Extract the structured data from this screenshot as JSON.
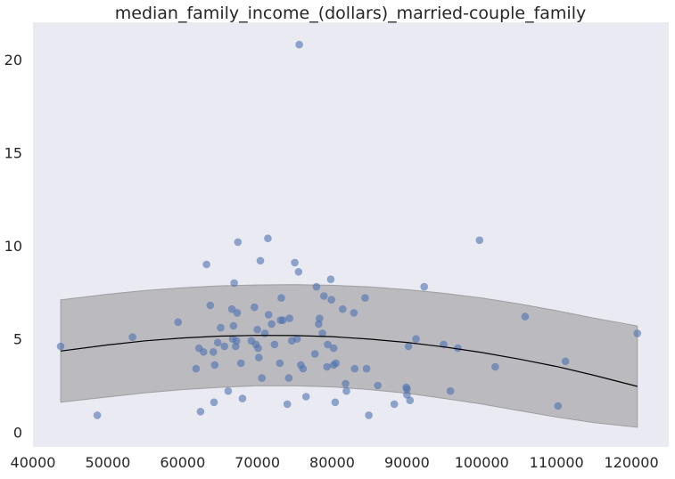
{
  "chart_data": {
    "type": "scatter",
    "title": "median_family_income_(dollars)_married-couple_family",
    "xlabel": "",
    "ylabel": "",
    "xlim": [
      40000,
      125000
    ],
    "ylim": [
      -0.8,
      22
    ],
    "x_ticks": [
      40000,
      50000,
      60000,
      70000,
      80000,
      90000,
      100000,
      110000,
      120000
    ],
    "y_ticks": [
      0,
      5,
      10,
      15,
      20
    ],
    "grid": false,
    "background": "#eaeaf2",
    "point_color": "#4c72b0",
    "fit_color": "#000000",
    "band_color": "#808080",
    "points": [
      [
        43700,
        4.6
      ],
      [
        48600,
        0.9
      ],
      [
        53300,
        5.1
      ],
      [
        59400,
        5.9
      ],
      [
        61800,
        3.4
      ],
      [
        62200,
        4.5
      ],
      [
        62400,
        1.1
      ],
      [
        62800,
        4.3
      ],
      [
        63200,
        9.0
      ],
      [
        63700,
        6.8
      ],
      [
        64200,
        1.6
      ],
      [
        64100,
        4.3
      ],
      [
        64300,
        3.6
      ],
      [
        64700,
        4.8
      ],
      [
        65100,
        5.6
      ],
      [
        65600,
        4.6
      ],
      [
        66100,
        2.2
      ],
      [
        66600,
        6.6
      ],
      [
        66700,
        5.0
      ],
      [
        66800,
        5.7
      ],
      [
        66900,
        8.0
      ],
      [
        67100,
        4.6
      ],
      [
        67200,
        4.9
      ],
      [
        67300,
        6.4
      ],
      [
        67400,
        10.2
      ],
      [
        67800,
        3.7
      ],
      [
        68000,
        1.8
      ],
      [
        69200,
        4.9
      ],
      [
        69600,
        6.7
      ],
      [
        69800,
        4.7
      ],
      [
        70000,
        5.5
      ],
      [
        70100,
        4.5
      ],
      [
        70200,
        4.0
      ],
      [
        70400,
        9.2
      ],
      [
        70600,
        2.9
      ],
      [
        71000,
        5.3
      ],
      [
        71400,
        10.4
      ],
      [
        71500,
        6.3
      ],
      [
        71900,
        5.8
      ],
      [
        72300,
        4.7
      ],
      [
        73000,
        3.7
      ],
      [
        73100,
        6.0
      ],
      [
        73200,
        7.2
      ],
      [
        73400,
        6.0
      ],
      [
        74000,
        1.5
      ],
      [
        74200,
        2.9
      ],
      [
        74300,
        6.1
      ],
      [
        74600,
        4.9
      ],
      [
        75000,
        9.1
      ],
      [
        75300,
        5.0
      ],
      [
        75500,
        8.6
      ],
      [
        75600,
        20.8
      ],
      [
        75800,
        3.6
      ],
      [
        76100,
        3.4
      ],
      [
        76500,
        1.9
      ],
      [
        77700,
        4.2
      ],
      [
        77900,
        7.8
      ],
      [
        78200,
        5.8
      ],
      [
        78300,
        6.1
      ],
      [
        78700,
        5.3
      ],
      [
        78900,
        7.3
      ],
      [
        79300,
        3.5
      ],
      [
        79400,
        4.7
      ],
      [
        79800,
        8.2
      ],
      [
        79900,
        7.1
      ],
      [
        80200,
        3.6
      ],
      [
        80200,
        4.5
      ],
      [
        80400,
        1.6
      ],
      [
        80500,
        3.7
      ],
      [
        81400,
        6.6
      ],
      [
        81800,
        2.6
      ],
      [
        81900,
        2.2
      ],
      [
        82900,
        6.4
      ],
      [
        83000,
        3.4
      ],
      [
        84400,
        7.2
      ],
      [
        84600,
        3.4
      ],
      [
        84900,
        0.9
      ],
      [
        86100,
        2.5
      ],
      [
        88300,
        1.5
      ],
      [
        89900,
        2.4
      ],
      [
        90000,
        2.3
      ],
      [
        90000,
        2.0
      ],
      [
        90200,
        4.6
      ],
      [
        90400,
        1.7
      ],
      [
        91200,
        5.0
      ],
      [
        92300,
        7.8
      ],
      [
        94900,
        4.7
      ],
      [
        95800,
        2.2
      ],
      [
        96800,
        4.5
      ],
      [
        99700,
        10.3
      ],
      [
        101800,
        3.5
      ],
      [
        105800,
        6.2
      ],
      [
        110200,
        1.4
      ],
      [
        111200,
        3.8
      ],
      [
        120800,
        5.3
      ]
    ],
    "fit_line": [
      [
        43700,
        4.35
      ],
      [
        50000,
        4.68
      ],
      [
        55000,
        4.9
      ],
      [
        60000,
        5.05
      ],
      [
        65000,
        5.15
      ],
      [
        70000,
        5.19
      ],
      [
        75000,
        5.18
      ],
      [
        80000,
        5.12
      ],
      [
        85000,
        4.99
      ],
      [
        90000,
        4.81
      ],
      [
        95000,
        4.57
      ],
      [
        100000,
        4.27
      ],
      [
        105000,
        3.92
      ],
      [
        110000,
        3.52
      ],
      [
        115000,
        3.05
      ],
      [
        120800,
        2.45
      ]
    ],
    "band_upper": [
      [
        43700,
        7.1
      ],
      [
        50000,
        7.4
      ],
      [
        55000,
        7.6
      ],
      [
        60000,
        7.75
      ],
      [
        65000,
        7.85
      ],
      [
        70000,
        7.9
      ],
      [
        75000,
        7.92
      ],
      [
        80000,
        7.88
      ],
      [
        85000,
        7.8
      ],
      [
        90000,
        7.65
      ],
      [
        95000,
        7.45
      ],
      [
        100000,
        7.2
      ],
      [
        105000,
        6.88
      ],
      [
        110000,
        6.52
      ],
      [
        115000,
        6.12
      ],
      [
        120800,
        5.7
      ]
    ],
    "band_lower": [
      [
        43700,
        1.6
      ],
      [
        50000,
        1.88
      ],
      [
        55000,
        2.1
      ],
      [
        60000,
        2.28
      ],
      [
        65000,
        2.4
      ],
      [
        70000,
        2.48
      ],
      [
        75000,
        2.48
      ],
      [
        80000,
        2.42
      ],
      [
        85000,
        2.28
      ],
      [
        90000,
        2.08
      ],
      [
        95000,
        1.8
      ],
      [
        100000,
        1.5
      ],
      [
        105000,
        1.15
      ],
      [
        110000,
        0.8
      ],
      [
        115000,
        0.5
      ],
      [
        120800,
        0.25
      ]
    ]
  }
}
